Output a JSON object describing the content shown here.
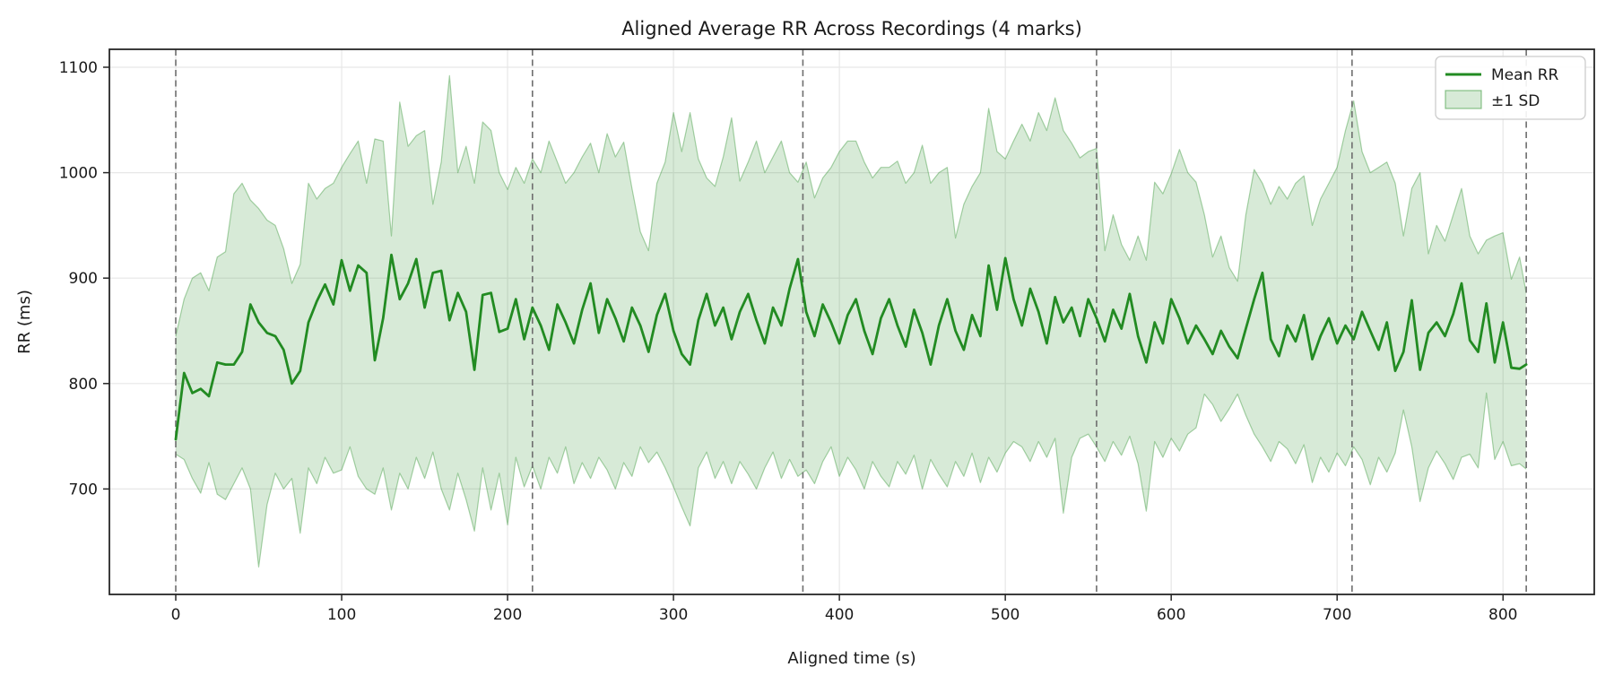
{
  "chart_data": {
    "type": "line",
    "title": "Aligned Average RR Across Recordings (4 marks)",
    "xlabel": "Aligned time (s)",
    "ylabel": "RR (ms)",
    "xlim": [
      -40,
      855
    ],
    "ylim": [
      600,
      1117
    ],
    "xticks": [
      0,
      100,
      200,
      300,
      400,
      500,
      600,
      700,
      800
    ],
    "yticks": [
      700,
      800,
      900,
      1000,
      1100
    ],
    "grid": true,
    "legend_position": "upper right",
    "legend": [
      {
        "label": "Mean RR",
        "type": "line"
      },
      {
        "label": "±1 SD",
        "type": "patch"
      }
    ],
    "vlines": [
      0,
      215,
      378,
      555,
      709,
      814
    ],
    "colors": {
      "mean_line": "#228b22",
      "band_fill": "#228b22",
      "band_fill_opacity": 0.18,
      "band_edge": "rgba(34,139,34,0.38)",
      "vline": "#6e6e6e",
      "grid": "#e7e7e7",
      "spine": "#262626",
      "text": "#1a1a1a"
    },
    "x": [
      0,
      5,
      10,
      15,
      20,
      25,
      30,
      35,
      40,
      45,
      50,
      55,
      60,
      65,
      70,
      75,
      80,
      85,
      90,
      95,
      100,
      105,
      110,
      115,
      120,
      125,
      130,
      135,
      140,
      145,
      150,
      155,
      160,
      165,
      170,
      175,
      180,
      185,
      190,
      195,
      200,
      205,
      210,
      215,
      220,
      225,
      230,
      235,
      240,
      245,
      250,
      255,
      260,
      265,
      270,
      275,
      280,
      285,
      290,
      295,
      300,
      305,
      310,
      315,
      320,
      325,
      330,
      335,
      340,
      345,
      350,
      355,
      360,
      365,
      370,
      375,
      380,
      385,
      390,
      395,
      400,
      405,
      410,
      415,
      420,
      425,
      430,
      435,
      440,
      445,
      450,
      455,
      460,
      465,
      470,
      475,
      480,
      485,
      490,
      495,
      500,
      505,
      510,
      515,
      520,
      525,
      530,
      535,
      540,
      545,
      550,
      555,
      560,
      565,
      570,
      575,
      580,
      585,
      590,
      595,
      600,
      605,
      610,
      615,
      620,
      625,
      630,
      635,
      640,
      645,
      650,
      655,
      660,
      665,
      670,
      675,
      680,
      685,
      690,
      695,
      700,
      705,
      710,
      715,
      720,
      725,
      730,
      735,
      740,
      745,
      750,
      755,
      760,
      765,
      770,
      775,
      780,
      785,
      790,
      795,
      800,
      805,
      810,
      814
    ],
    "mean": [
      747,
      810,
      791,
      795,
      788,
      820,
      818,
      818,
      830,
      875,
      858,
      848,
      845,
      832,
      800,
      812,
      858,
      878,
      894,
      875,
      917,
      888,
      912,
      905,
      822,
      862,
      922,
      880,
      895,
      918,
      872,
      905,
      907,
      860,
      886,
      868,
      813,
      884,
      886,
      849,
      852,
      880,
      842,
      872,
      855,
      832,
      875,
      858,
      838,
      870,
      895,
      848,
      880,
      862,
      840,
      872,
      855,
      830,
      865,
      885,
      850,
      828,
      818,
      860,
      885,
      855,
      872,
      842,
      868,
      885,
      860,
      838,
      872,
      855,
      890,
      918,
      868,
      845,
      875,
      858,
      838,
      865,
      880,
      850,
      828,
      862,
      880,
      855,
      835,
      870,
      848,
      818,
      855,
      880,
      850,
      832,
      865,
      845,
      912,
      870,
      919,
      880,
      855,
      890,
      868,
      838,
      882,
      858,
      872,
      845,
      880,
      862,
      840,
      870,
      852,
      885,
      845,
      820,
      858,
      838,
      880,
      862,
      838,
      855,
      842,
      828,
      850,
      835,
      824,
      852,
      880,
      905,
      842,
      826,
      855,
      840,
      865,
      823,
      845,
      862,
      838,
      855,
      842,
      868,
      850,
      832,
      858,
      812,
      830,
      879,
      813,
      848,
      858,
      845,
      866,
      895,
      841,
      830,
      876,
      820,
      858,
      815,
      814,
      818
    ],
    "upper": [
      845,
      880,
      900,
      905,
      888,
      920,
      925,
      980,
      990,
      974,
      966,
      955,
      950,
      928,
      895,
      913,
      990,
      975,
      985,
      990,
      1005,
      1018,
      1030,
      990,
      1032,
      1030,
      940,
      1067,
      1025,
      1035,
      1040,
      970,
      1010,
      1092,
      1000,
      1025,
      990,
      1048,
      1040,
      1000,
      984,
      1005,
      990,
      1013,
      1000,
      1030,
      1010,
      990,
      1000,
      1015,
      1028,
      1000,
      1037,
      1015,
      1029,
      985,
      944,
      926,
      990,
      1010,
      1057,
      1020,
      1057,
      1013,
      995,
      987,
      1015,
      1052,
      992,
      1010,
      1030,
      1000,
      1015,
      1030,
      1000,
      991,
      1010,
      976,
      995,
      1005,
      1020,
      1030,
      1030,
      1010,
      995,
      1005,
      1005,
      1011,
      990,
      1000,
      1026,
      990,
      1000,
      1005,
      938,
      970,
      987,
      1000,
      1061,
      1020,
      1013,
      1030,
      1046,
      1030,
      1057,
      1040,
      1071,
      1040,
      1028,
      1014,
      1020,
      1023,
      926,
      960,
      932,
      917,
      940,
      917,
      991,
      980,
      999,
      1022,
      1000,
      991,
      960,
      920,
      940,
      910,
      897,
      960,
      1003,
      990,
      970,
      987,
      975,
      990,
      997,
      950,
      975,
      990,
      1005,
      1040,
      1068,
      1020,
      1000,
      1005,
      1010,
      990,
      940,
      985,
      1000,
      923,
      950,
      935,
      960,
      985,
      940,
      923,
      936,
      940,
      943,
      899,
      920,
      886
    ],
    "lower": [
      733,
      728,
      710,
      696,
      725,
      695,
      690,
      705,
      720,
      700,
      626,
      685,
      715,
      700,
      710,
      658,
      720,
      705,
      730,
      715,
      718,
      740,
      712,
      700,
      695,
      720,
      680,
      715,
      700,
      730,
      710,
      735,
      700,
      680,
      715,
      690,
      660,
      720,
      680,
      715,
      666,
      730,
      702,
      722,
      700,
      730,
      715,
      740,
      705,
      725,
      710,
      730,
      718,
      700,
      725,
      712,
      740,
      725,
      735,
      720,
      702,
      683,
      665,
      720,
      735,
      710,
      726,
      705,
      726,
      714,
      700,
      720,
      735,
      710,
      728,
      712,
      718,
      705,
      726,
      740,
      712,
      730,
      718,
      700,
      726,
      712,
      702,
      726,
      714,
      732,
      700,
      728,
      714,
      702,
      726,
      712,
      734,
      706,
      730,
      716,
      734,
      745,
      740,
      726,
      745,
      730,
      748,
      677,
      730,
      748,
      752,
      740,
      726,
      745,
      732,
      750,
      724,
      679,
      745,
      730,
      748,
      736,
      752,
      758,
      790,
      780,
      764,
      776,
      790,
      770,
      752,
      740,
      726,
      745,
      738,
      724,
      742,
      706,
      730,
      716,
      734,
      722,
      740,
      728,
      704,
      730,
      716,
      734,
      775,
      740,
      688,
      720,
      736,
      724,
      709,
      730,
      733,
      720,
      791,
      728,
      745,
      722,
      724,
      719
    ]
  }
}
